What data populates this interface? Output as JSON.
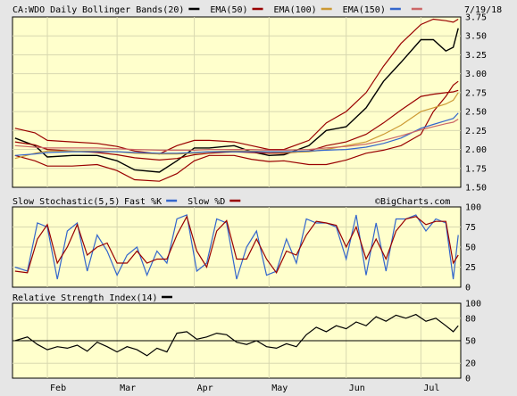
{
  "header": {
    "symbol_label": "CA:WDO Daily",
    "date": "7/19/18",
    "legend": [
      {
        "label": "Bollinger Bands(20)",
        "color": "#000000"
      },
      {
        "label": "EMA(50)",
        "color": "#990000"
      },
      {
        "label": "EMA(100)",
        "color": "#cc9933"
      },
      {
        "label": "EMA(150)",
        "color": "#3366cc"
      },
      {
        "label": "",
        "color": "#cc6666"
      }
    ]
  },
  "x_axis": {
    "months": [
      {
        "label": "Feb",
        "day": 0
      },
      {
        "label": "Mar",
        "day": 28
      },
      {
        "label": "Apr",
        "day": 59
      },
      {
        "label": "May",
        "day": 89
      },
      {
        "label": "Jun",
        "day": 120
      },
      {
        "label": "Jul",
        "day": 150
      }
    ]
  },
  "chart_data": [
    {
      "type": "line",
      "name": "price",
      "ylim": [
        1.5,
        3.75
      ],
      "yticks": [
        "3.75",
        "3.50",
        "3.25",
        "3.00",
        "2.75",
        "2.50",
        "2.25",
        "2.00",
        "1.75",
        "1.50"
      ],
      "ytick_values": [
        3.75,
        3.5,
        3.25,
        3.0,
        2.75,
        2.5,
        2.25,
        2.0,
        1.75,
        1.5
      ],
      "x": [
        -13,
        -5,
        0,
        10,
        20,
        28,
        35,
        45,
        52,
        59,
        65,
        75,
        82,
        89,
        95,
        105,
        112,
        120,
        128,
        135,
        142,
        150,
        155,
        160,
        163,
        165
      ],
      "series": [
        {
          "key": "close",
          "color": "#000000",
          "values": [
            2.15,
            2.05,
            1.9,
            1.92,
            1.92,
            1.85,
            1.73,
            1.7,
            1.85,
            2.02,
            2.02,
            2.05,
            1.97,
            1.92,
            1.93,
            2.05,
            2.25,
            2.3,
            2.55,
            2.9,
            3.15,
            3.45,
            3.45,
            3.3,
            3.35,
            3.6
          ]
        },
        {
          "key": "bb_upper",
          "color": "#990000",
          "values": [
            2.28,
            2.22,
            2.12,
            2.1,
            2.08,
            2.04,
            1.98,
            1.94,
            2.05,
            2.12,
            2.12,
            2.1,
            2.05,
            2.0,
            2.0,
            2.12,
            2.35,
            2.5,
            2.75,
            3.1,
            3.4,
            3.65,
            3.72,
            3.7,
            3.68,
            3.72
          ]
        },
        {
          "key": "bb_lower",
          "color": "#990000",
          "values": [
            1.92,
            1.85,
            1.78,
            1.78,
            1.8,
            1.72,
            1.6,
            1.58,
            1.68,
            1.85,
            1.92,
            1.92,
            1.87,
            1.84,
            1.85,
            1.8,
            1.8,
            1.86,
            1.95,
            1.99,
            2.05,
            2.2,
            2.5,
            2.7,
            2.85,
            2.9
          ]
        },
        {
          "key": "ema50",
          "color": "#990000",
          "values": [
            2.1,
            2.06,
            2.0,
            1.98,
            1.96,
            1.93,
            1.89,
            1.86,
            1.88,
            1.93,
            1.95,
            1.97,
            1.96,
            1.95,
            1.95,
            1.98,
            2.05,
            2.1,
            2.2,
            2.35,
            2.52,
            2.7,
            2.73,
            2.75,
            2.76,
            2.78
          ]
        },
        {
          "key": "ema100",
          "color": "#cc9933",
          "values": [
            1.88,
            1.95,
            1.98,
            1.98,
            1.98,
            1.97,
            1.95,
            1.94,
            1.94,
            1.95,
            1.97,
            1.98,
            1.98,
            1.97,
            1.96,
            1.97,
            2.0,
            2.05,
            2.1,
            2.2,
            2.32,
            2.5,
            2.55,
            2.6,
            2.65,
            2.75
          ]
        },
        {
          "key": "ema150",
          "color": "#3366cc",
          "values": [
            1.92,
            1.94,
            1.96,
            1.97,
            1.97,
            1.97,
            1.96,
            1.95,
            1.95,
            1.96,
            1.97,
            1.97,
            1.97,
            1.97,
            1.97,
            1.98,
            1.99,
            2.0,
            2.03,
            2.08,
            2.15,
            2.28,
            2.33,
            2.38,
            2.41,
            2.48
          ]
        },
        {
          "key": "ema_extra",
          "color": "#cc6666",
          "values": [
            2.05,
            2.03,
            2.02,
            2.02,
            2.02,
            2.01,
            2.0,
            1.99,
            1.99,
            1.99,
            2.0,
            2.0,
            2.0,
            1.99,
            1.99,
            2.0,
            2.02,
            2.04,
            2.07,
            2.12,
            2.18,
            2.26,
            2.3,
            2.34,
            2.36,
            2.4
          ]
        }
      ]
    },
    {
      "type": "line",
      "name": "stochastic",
      "title": "Slow Stochastic(5,5)",
      "legend": [
        {
          "label": "Fast %K",
          "color": "#3366cc"
        },
        {
          "label": "Slow %D",
          "color": "#990000"
        }
      ],
      "ylim": [
        0,
        100
      ],
      "yticks": [
        "100",
        "75",
        "50",
        "25",
        "0"
      ],
      "ytick_values": [
        100,
        75,
        50,
        25,
        0
      ],
      "x": [
        -13,
        -8,
        -4,
        0,
        4,
        8,
        12,
        16,
        20,
        24,
        28,
        32,
        36,
        40,
        44,
        48,
        52,
        56,
        60,
        64,
        68,
        72,
        76,
        80,
        84,
        88,
        92,
        96,
        100,
        104,
        108,
        112,
        116,
        120,
        124,
        128,
        132,
        136,
        140,
        144,
        148,
        152,
        156,
        160,
        163,
        165
      ],
      "series": [
        {
          "key": "fast_k",
          "color": "#3366cc",
          "values": [
            25,
            20,
            80,
            75,
            10,
            70,
            80,
            20,
            65,
            45,
            15,
            40,
            50,
            15,
            45,
            30,
            85,
            90,
            20,
            30,
            85,
            80,
            10,
            50,
            70,
            15,
            20,
            60,
            30,
            85,
            80,
            80,
            75,
            35,
            90,
            15,
            80,
            20,
            85,
            85,
            90,
            70,
            85,
            80,
            10,
            65
          ]
        },
        {
          "key": "slow_d",
          "color": "#990000",
          "values": [
            20,
            18,
            60,
            78,
            30,
            50,
            78,
            40,
            50,
            55,
            30,
            30,
            45,
            30,
            35,
            35,
            65,
            88,
            45,
            25,
            70,
            83,
            35,
            35,
            60,
            35,
            18,
            45,
            40,
            65,
            82,
            80,
            77,
            50,
            75,
            35,
            60,
            35,
            70,
            85,
            88,
            78,
            82,
            82,
            30,
            40
          ]
        }
      ]
    },
    {
      "type": "line",
      "name": "rsi",
      "title": "Relative Strength Index(14)",
      "legend": [
        {
          "label": "",
          "color": "#000000"
        }
      ],
      "ylim": [
        0,
        100
      ],
      "yticks": [
        "100",
        "80",
        "50",
        "20",
        "0"
      ],
      "ytick_values": [
        100,
        80,
        50,
        20,
        0
      ],
      "reference_line": 50,
      "x": [
        -13,
        -8,
        -4,
        0,
        4,
        8,
        12,
        16,
        20,
        24,
        28,
        32,
        36,
        40,
        44,
        48,
        52,
        56,
        60,
        64,
        68,
        72,
        76,
        80,
        84,
        88,
        92,
        96,
        100,
        104,
        108,
        112,
        116,
        120,
        124,
        128,
        132,
        136,
        140,
        144,
        148,
        152,
        156,
        160,
        163,
        165
      ],
      "series": [
        {
          "key": "rsi",
          "color": "#000000",
          "values": [
            50,
            55,
            45,
            38,
            42,
            40,
            44,
            36,
            48,
            42,
            35,
            42,
            38,
            30,
            40,
            35,
            60,
            62,
            52,
            55,
            60,
            58,
            48,
            45,
            50,
            42,
            40,
            46,
            42,
            58,
            68,
            62,
            70,
            66,
            75,
            70,
            82,
            76,
            84,
            80,
            85,
            76,
            80,
            70,
            62,
            70
          ]
        }
      ]
    }
  ]
}
